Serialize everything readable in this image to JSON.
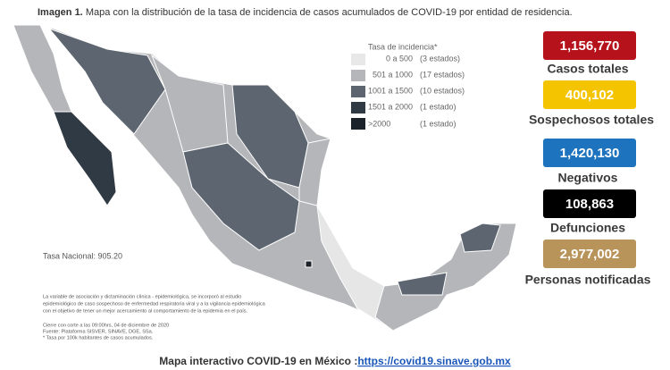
{
  "header": {
    "label": "Imagen 1.",
    "title": "Mapa con la distribución de la tasa de incidencia de casos acumulados de COVID-19 por entidad de residencia."
  },
  "legend": {
    "title": "Tasa de incidencia*",
    "rows": [
      {
        "range": "0 a 500",
        "count": "(3 estados)"
      },
      {
        "range": "501 a 1000",
        "count": "(17 estados)"
      },
      {
        "range": "1001 a 1500",
        "count": "(10 estados)"
      },
      {
        "range": "1501 a 2000",
        "count": "(1 estado)"
      },
      {
        "range": ">2000",
        "count": "(1 estado)"
      }
    ]
  },
  "national_rate": "Tasa Nacional: 905.20",
  "notes": [
    "La variable de asociación y dictaminación clínica - epidemiológica, se incorporó al estudio",
    "epidemiológico de caso sospechoso de enfermedad respiratoria viral y a la vigilancia epidemiológica",
    "con el objetivo de tener un mejor acercamiento al comportamiento de la epidemia en el país.",
    "Cierre con corte a las 09:00hrs, 04 de diciembre de 2020",
    "Fuente: Plataforma SISVER, SINAVE, DGE, SSa.",
    "* Tasa por 100k habitantes de casos acumulados."
  ],
  "stats": [
    {
      "value": "1,156,770",
      "label": "Casos totales"
    },
    {
      "value": "400,102",
      "label": "Sospechosos totales"
    },
    {
      "value": "1,420,130",
      "label": "Negativos"
    },
    {
      "value": "108,863",
      "label": "Defunciones"
    },
    {
      "value": "2,977,002",
      "label": "Personas notificadas"
    }
  ],
  "footer": {
    "text": "Mapa interactivo COVID-19 en México :",
    "link": "https://covid19.sinave.gob.mx"
  }
}
